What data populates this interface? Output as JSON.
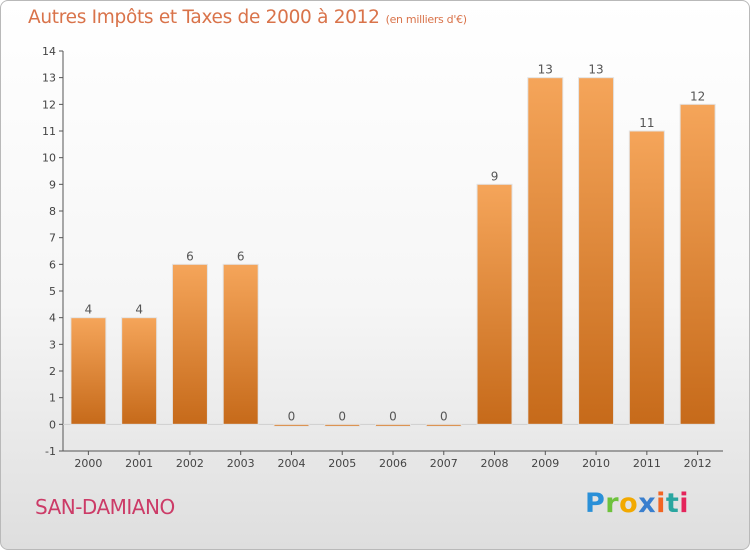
{
  "header": {
    "title": "Autres Impôts et Taxes de 2000 à 2012",
    "unit_note": "(en milliers d'€)"
  },
  "footer": {
    "place": "SAN-DAMIANO",
    "logo_text": "Proxiti"
  },
  "colors": {
    "title": "#d9734a",
    "place": "#cc3b67",
    "bar_light": "#f5a55a",
    "bar_dark": "#c66a1a"
  },
  "chart_data": {
    "type": "bar",
    "title": "Autres Impôts et Taxes de 2000 à 2012",
    "subtitle": "(en milliers d'€)",
    "xlabel": "",
    "ylabel": "",
    "categories": [
      "2000",
      "2001",
      "2002",
      "2003",
      "2004",
      "2005",
      "2006",
      "2007",
      "2008",
      "2009",
      "2010",
      "2011",
      "2012"
    ],
    "values": [
      4,
      4,
      6,
      6,
      0,
      0,
      0,
      0,
      9,
      13,
      13,
      11,
      12
    ],
    "data_labels": [
      "4",
      "4",
      "6",
      "6",
      "0",
      "0",
      "0",
      "0",
      "9",
      "13",
      "13",
      "11",
      "12"
    ],
    "ylim": [
      -1,
      14
    ],
    "yticks": [
      "-1",
      "0",
      "1",
      "2",
      "3",
      "4",
      "5",
      "6",
      "7",
      "8",
      "9",
      "10",
      "11",
      "12",
      "13",
      "14"
    ],
    "grid": false,
    "legend": "none"
  }
}
